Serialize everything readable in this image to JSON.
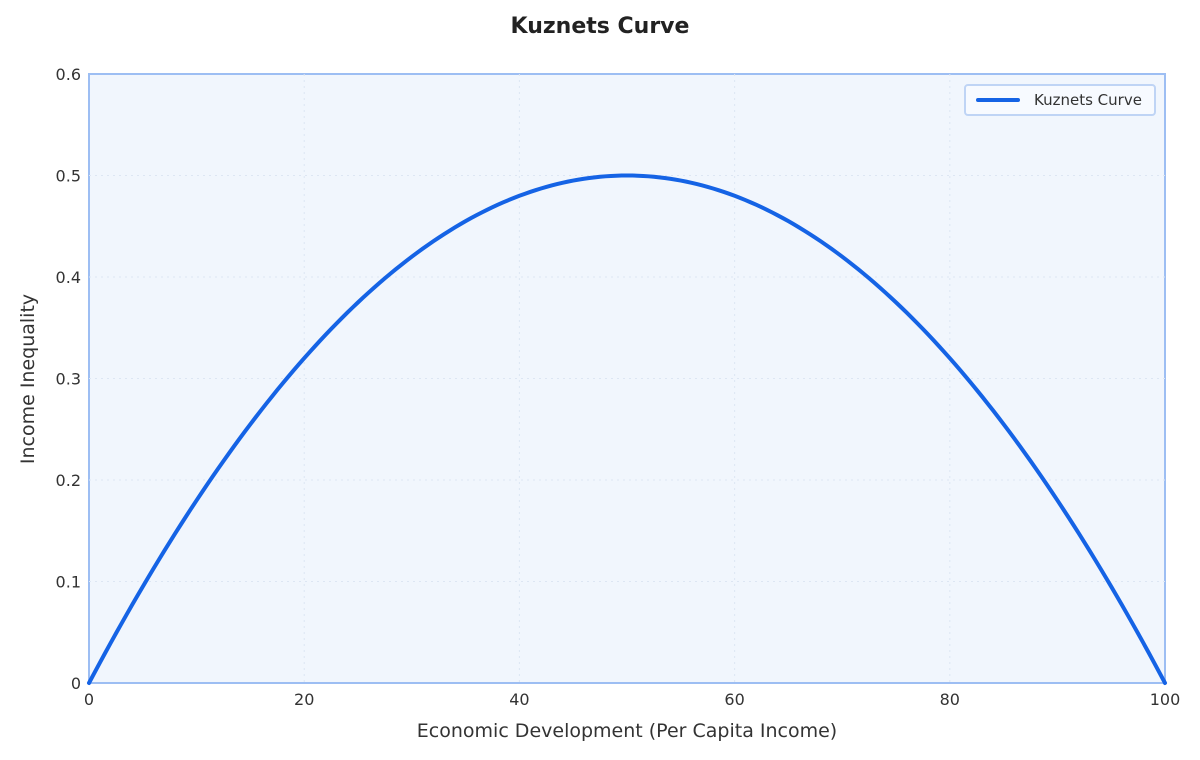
{
  "chart_data": {
    "type": "line",
    "title": "Kuznets Curve",
    "xlabel": "Economic Development (Per Capita Income)",
    "ylabel": "Income Inequality",
    "xlim": [
      0,
      100
    ],
    "ylim": [
      0,
      0.6
    ],
    "xticks": [
      0,
      20,
      40,
      60,
      80,
      100
    ],
    "yticks": [
      0,
      0.1,
      0.2,
      0.3,
      0.4,
      0.5,
      0.6
    ],
    "xtick_labels": [
      "0",
      "20",
      "40",
      "60",
      "80",
      "100"
    ],
    "ytick_labels": [
      "0",
      "0.1",
      "0.2",
      "0.3",
      "0.4",
      "0.5",
      "0.6"
    ],
    "grid": true,
    "legend_position": "upper right",
    "series": [
      {
        "name": "Kuznets Curve",
        "color": "#1563e5",
        "x": [
          0,
          5,
          10,
          15,
          20,
          25,
          30,
          35,
          40,
          45,
          50,
          55,
          60,
          65,
          70,
          75,
          80,
          85,
          90,
          95,
          100
        ],
        "values": [
          0,
          0.095,
          0.18,
          0.255,
          0.32,
          0.375,
          0.42,
          0.455,
          0.48,
          0.495,
          0.5,
          0.495,
          0.48,
          0.455,
          0.42,
          0.375,
          0.32,
          0.255,
          0.18,
          0.095,
          0
        ]
      }
    ]
  },
  "colors": {
    "line": "#1563e5",
    "plot_bg": "#f1f6fd",
    "axis": "#9dbef3",
    "grid": "#dde6f3"
  }
}
